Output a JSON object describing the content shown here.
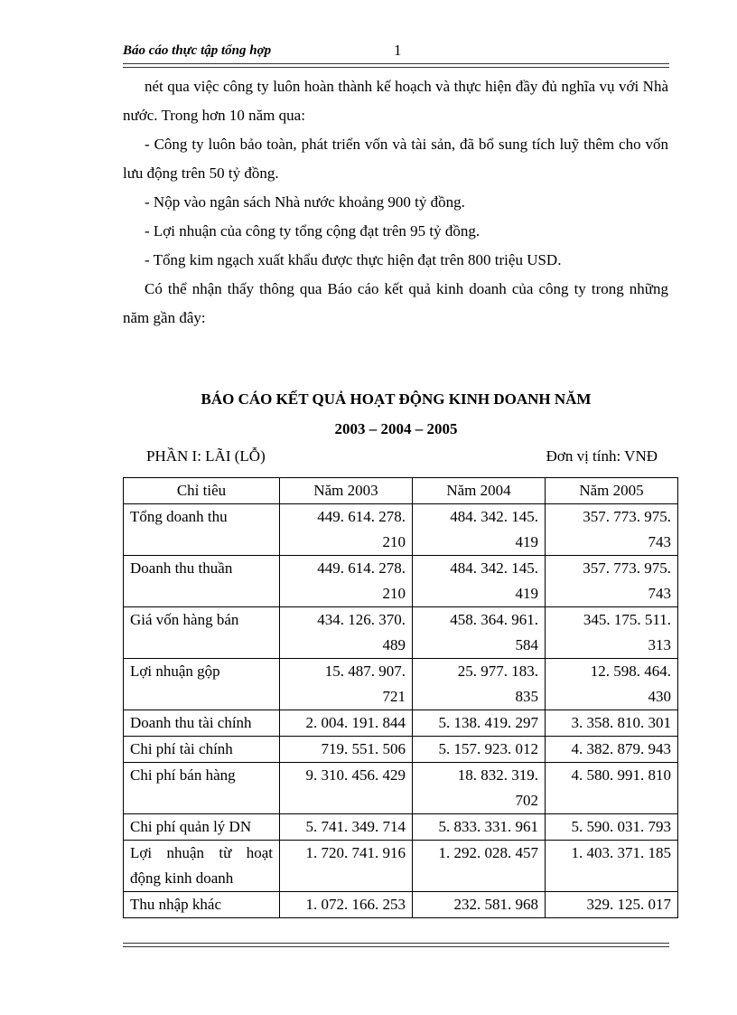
{
  "header": {
    "title": "Báo cáo thực tập tổng hợp",
    "page_number": "1"
  },
  "body": {
    "paragraphs": [
      "nét qua việc công ty luôn hoàn thành kế hoạch và thực hiện đầy đủ nghĩa vụ với Nhà nước. Trong hơn 10 năm qua:",
      "- Công ty luôn bảo toàn, phát triển vốn và tài sản, đã bổ sung tích luỹ thêm cho vốn lưu động trên 50 tỷ đồng.",
      "- Nộp vào ngân sách Nhà nước khoảng 900 tỷ đồng.",
      "- Lợi nhuận của công ty tổng cộng đạt trên 95 tỷ đồng.",
      "- Tổng kim ngạch xuất khẩu được thực hiện đạt trên 800 triệu USD.",
      "Có thể nhận thấy thông qua Báo cáo kết quả kinh doanh của công ty trong những năm gần đây:"
    ]
  },
  "report": {
    "title_line1": "BÁO CÁO KẾT QUẢ HOẠT ĐỘNG KINH DOANH NĂM",
    "title_line2": "2003 – 2004 – 2005",
    "part": "PHẦN I: LÃI (LỖ)",
    "unit": "Đơn vị tính: VNĐ",
    "columns": [
      "Chỉ tiêu",
      "Năm 2003",
      "Năm 2004",
      "Năm 2005"
    ],
    "rows": [
      {
        "label": "Tổng doanh thu",
        "values": [
          [
            "449. 614. 278.",
            "210"
          ],
          [
            "484. 342. 145.",
            "419"
          ],
          [
            "357. 773. 975.",
            "743"
          ]
        ]
      },
      {
        "label": "Doanh thu thuần",
        "values": [
          [
            "449. 614. 278.",
            "210"
          ],
          [
            "484. 342. 145.",
            "419"
          ],
          [
            "357. 773. 975.",
            "743"
          ]
        ]
      },
      {
        "label": "Giá vốn hàng bán",
        "values": [
          [
            "434. 126. 370.",
            "489"
          ],
          [
            "458. 364. 961.",
            "584"
          ],
          [
            "345. 175. 511.",
            "313"
          ]
        ]
      },
      {
        "label": "Lợi nhuận gộp",
        "values": [
          [
            "15. 487. 907.",
            "721"
          ],
          [
            "25. 977. 183.",
            "835"
          ],
          [
            "12. 598. 464.",
            "430"
          ]
        ]
      },
      {
        "label": "Doanh thu tài chính",
        "values": [
          [
            "2. 004. 191. 844"
          ],
          [
            "5. 138. 419. 297"
          ],
          [
            "3. 358. 810. 301"
          ]
        ]
      },
      {
        "label": "Chi phí tài chính",
        "values": [
          [
            "719. 551. 506"
          ],
          [
            "5. 157. 923. 012"
          ],
          [
            "4. 382. 879. 943"
          ]
        ]
      },
      {
        "label": "Chi phí bán hàng",
        "values": [
          [
            "9. 310. 456. 429"
          ],
          [
            "18. 832. 319.",
            "702"
          ],
          [
            "4. 580. 991. 810"
          ]
        ]
      },
      {
        "label": "Chi phí quản lý DN",
        "values": [
          [
            "5. 741. 349. 714"
          ],
          [
            "5. 833. 331. 961"
          ],
          [
            "5. 590. 031. 793"
          ]
        ]
      },
      {
        "label": "Lợi nhuận từ hoạt động kinh doanh",
        "values": [
          [
            "1. 720. 741. 916"
          ],
          [
            "1. 292. 028. 457"
          ],
          [
            "1. 403. 371. 185"
          ]
        ]
      },
      {
        "label": "Thu nhập khác",
        "values": [
          [
            "1. 072. 166. 253"
          ],
          [
            "232. 581. 968"
          ],
          [
            "329. 125. 017"
          ]
        ]
      }
    ]
  }
}
